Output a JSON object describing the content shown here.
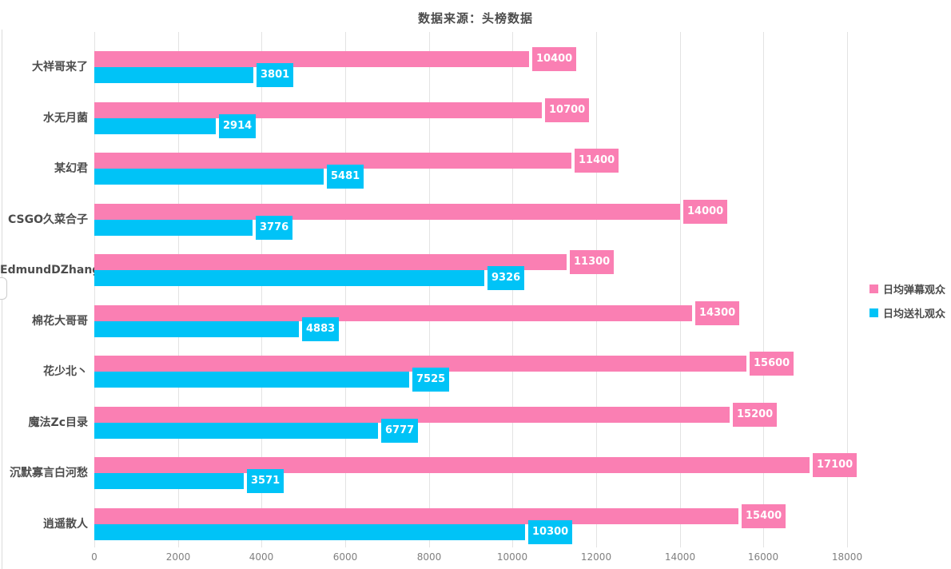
{
  "chart_data": {
    "type": "bar",
    "orientation": "horizontal",
    "title": "数据来源：头榜数据",
    "categories": [
      "大祥哥来了",
      "水无月菌",
      "某幻君",
      "CSGO久菜合子",
      "EdmundDZhang",
      "棉花大哥哥",
      "花少北丶",
      "魔法Zc目录",
      "沉默寡言白河愁",
      "逍遥散人"
    ],
    "series": [
      {
        "name": "日均弹幕观众",
        "color": "#fa7fb3",
        "values": [
          10400,
          10700,
          11400,
          14000,
          11300,
          14300,
          15600,
          15200,
          17100,
          15400
        ]
      },
      {
        "name": "日均送礼观众",
        "color": "#00c3f7",
        "values": [
          3801,
          2914,
          5481,
          3776,
          9326,
          4883,
          7525,
          6777,
          3571,
          10300
        ]
      }
    ],
    "xlim": [
      0,
      18000
    ],
    "x_ticks": [
      0,
      2000,
      4000,
      6000,
      8000,
      10000,
      12000,
      14000,
      16000,
      18000
    ],
    "grid": "vertical-only",
    "legend_position": "right",
    "value_labels": "white-text-in-series-colored-tags"
  },
  "colors": {
    "series_danmu": "#fa7fb3",
    "series_gift": "#00c3f7",
    "title_text": "#4c4c4c",
    "category_text": "#4c4c4c",
    "tick_text": "#808080",
    "gridline": "#e3e3e3",
    "panel_edge": "#dcdcdc"
  }
}
